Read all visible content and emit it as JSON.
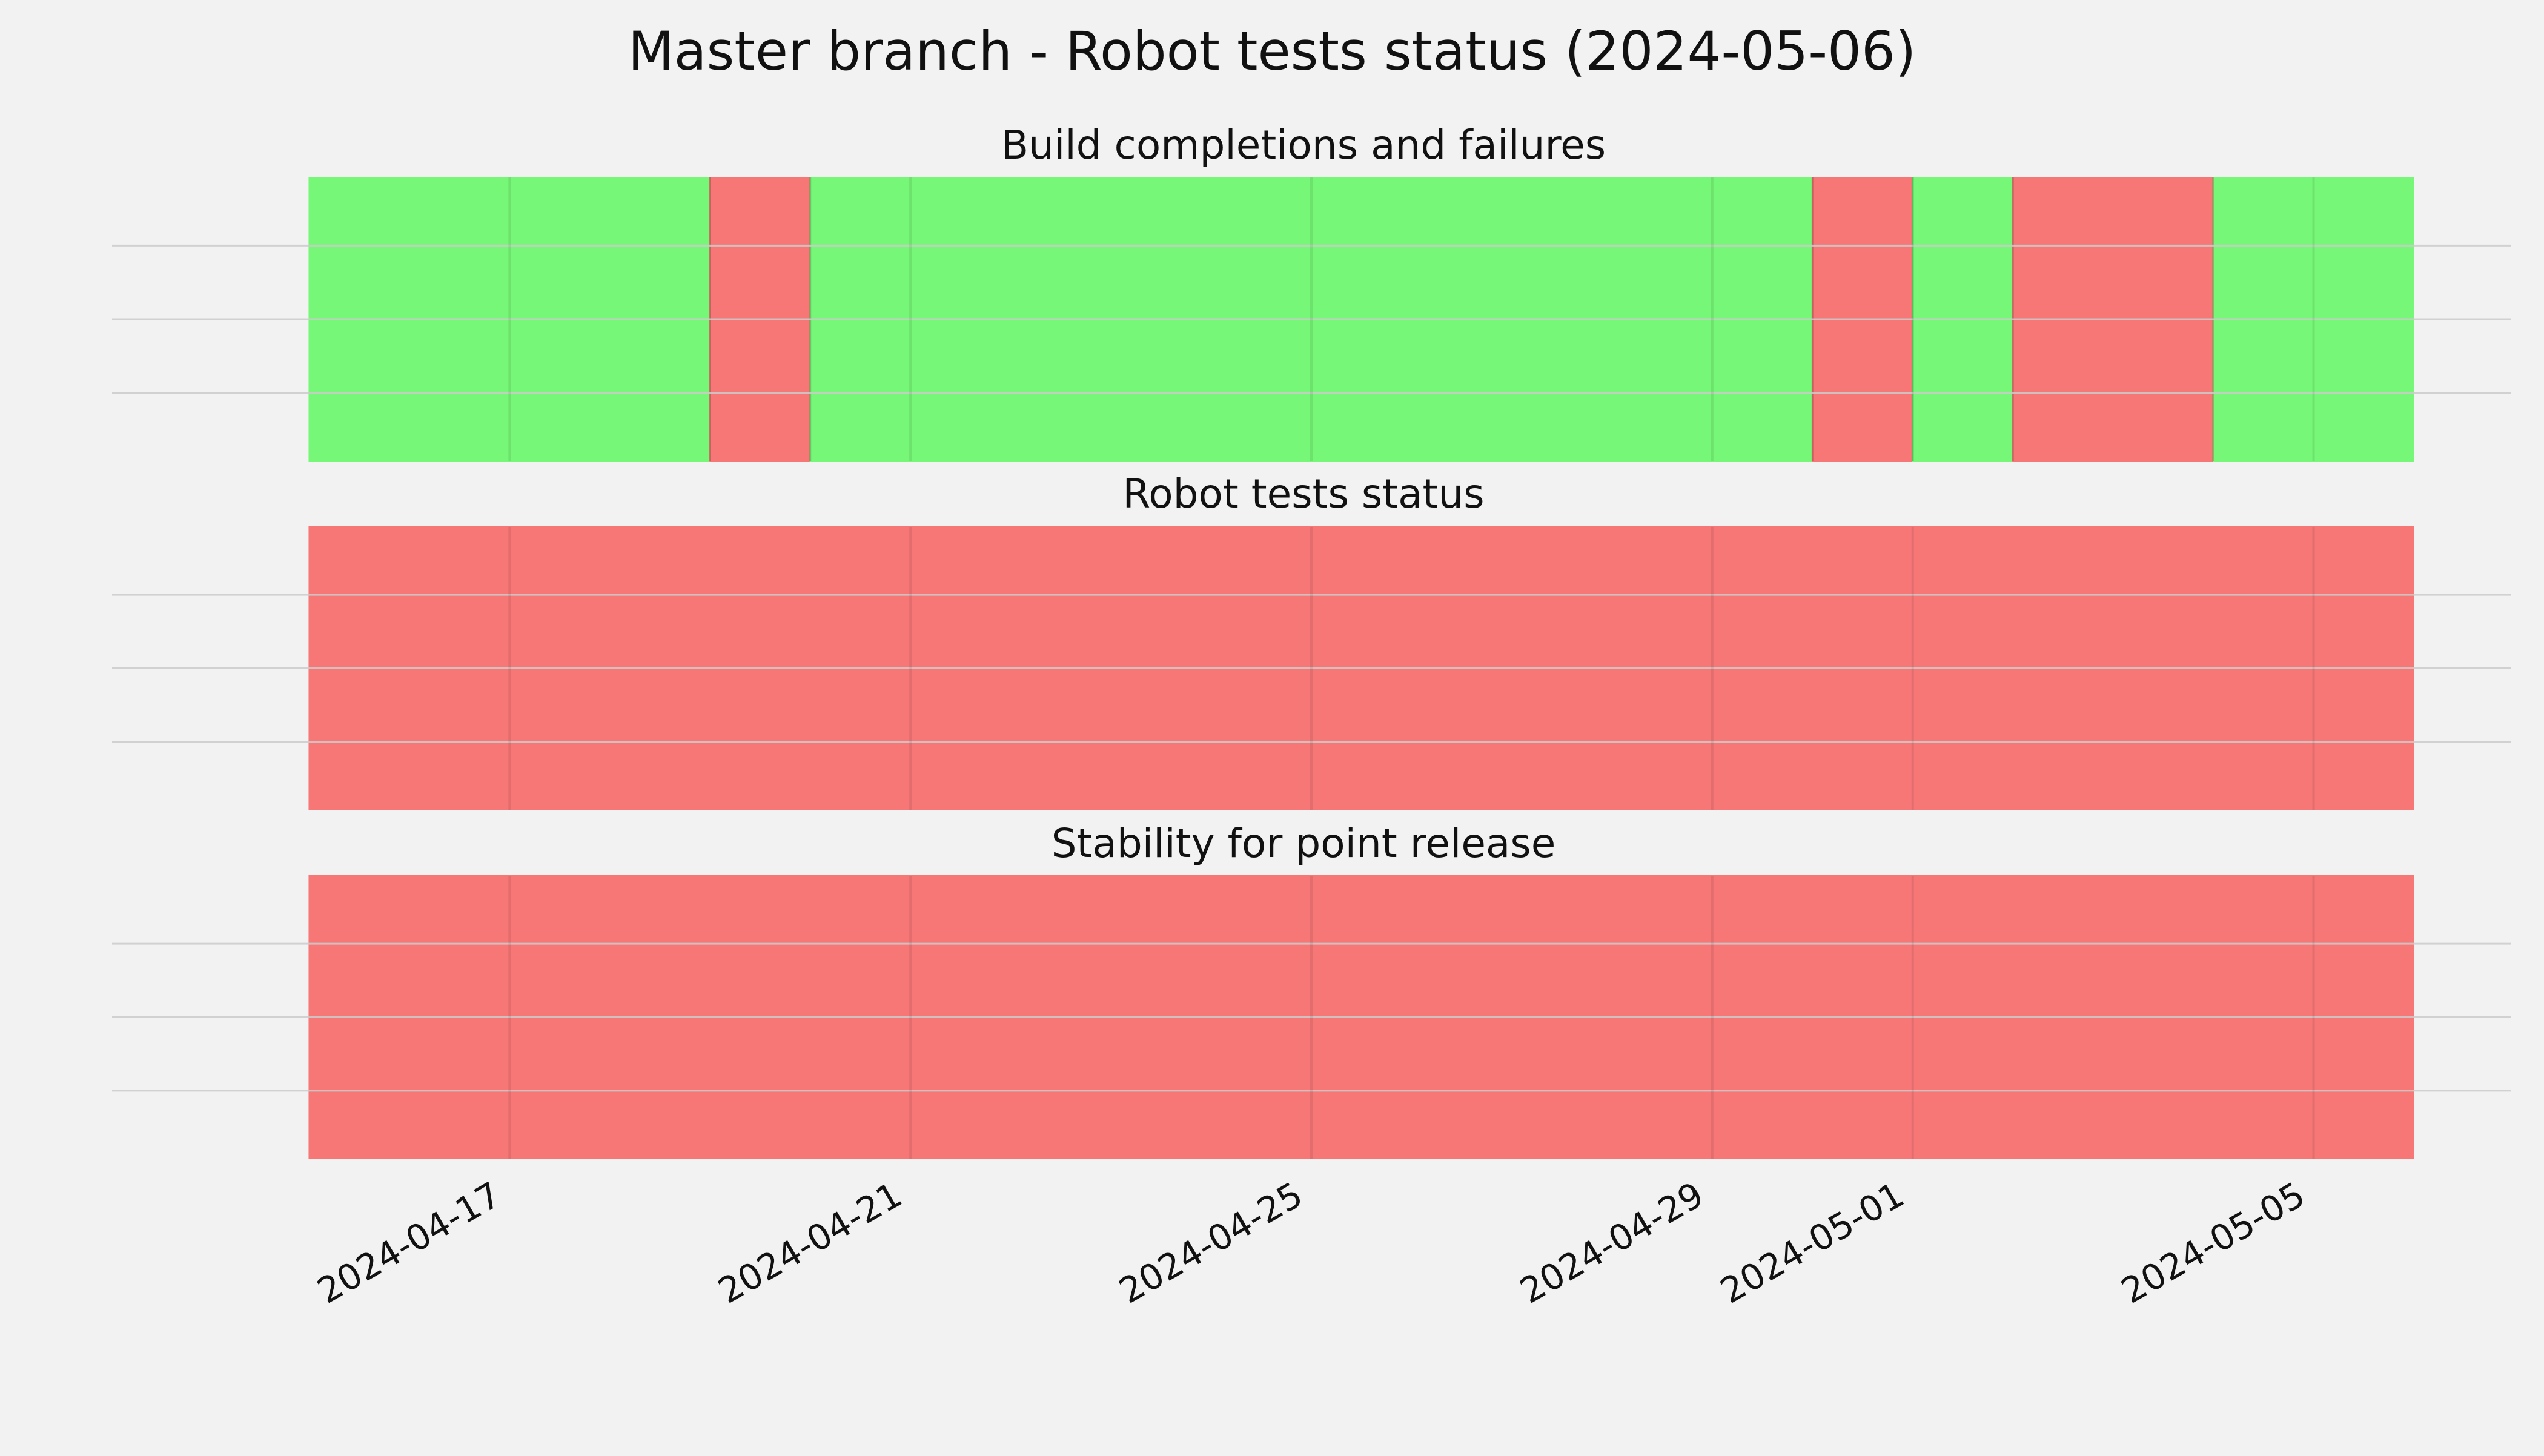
{
  "title": "Master branch - Robot tests status (2024-05-06)",
  "colors": {
    "background": "#f2f2f2",
    "success": "#77f777",
    "failure": "#f77777",
    "grid": "#cccccc"
  },
  "chart_data": {
    "type": "timeline",
    "x_range": [
      "2024-04-14",
      "2024-05-06"
    ],
    "x_ticks": [
      "2024-04-17",
      "2024-04-21",
      "2024-04-25",
      "2024-04-29",
      "2024-05-01",
      "2024-05-05"
    ],
    "grid": true,
    "panels": [
      {
        "title": "Build completions and failures",
        "segments": [
          {
            "start": "2024-04-15",
            "end": "2024-04-19",
            "status": "success"
          },
          {
            "start": "2024-04-19",
            "end": "2024-04-20",
            "status": "failure"
          },
          {
            "start": "2024-04-20",
            "end": "2024-04-30",
            "status": "success"
          },
          {
            "start": "2024-04-30",
            "end": "2024-05-01",
            "status": "failure"
          },
          {
            "start": "2024-05-01",
            "end": "2024-05-02",
            "status": "success"
          },
          {
            "start": "2024-05-02",
            "end": "2024-05-04",
            "status": "failure"
          },
          {
            "start": "2024-05-04",
            "end": "2024-05-06",
            "status": "success"
          }
        ]
      },
      {
        "title": "Robot tests status",
        "segments": [
          {
            "start": "2024-04-15",
            "end": "2024-05-06",
            "status": "failure"
          }
        ]
      },
      {
        "title": "Stability for point release",
        "segments": [
          {
            "start": "2024-04-15",
            "end": "2024-05-06",
            "status": "failure"
          }
        ]
      }
    ]
  }
}
